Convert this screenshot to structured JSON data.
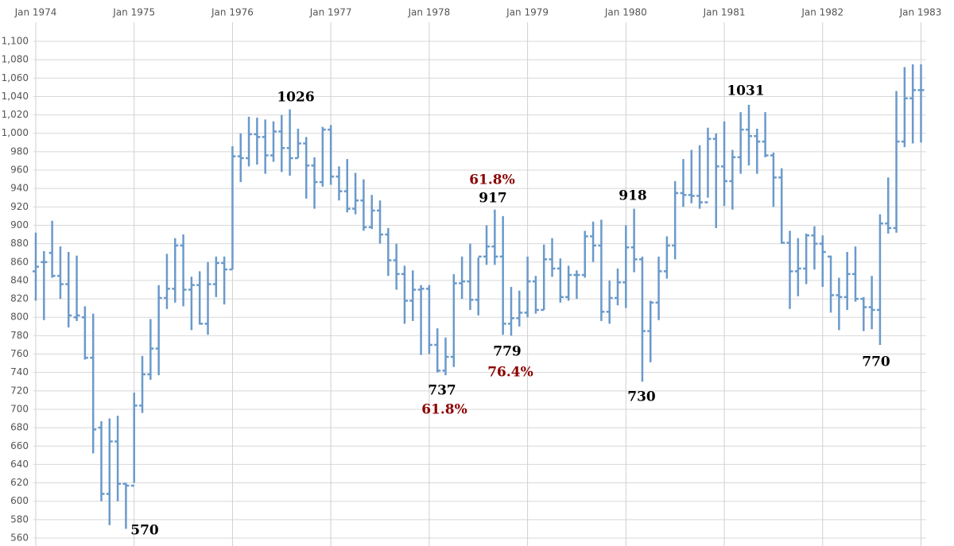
{
  "chart_data": {
    "type": "ohlc",
    "categories": [
      "Jan 1974",
      null,
      null,
      null,
      null,
      null,
      null,
      null,
      null,
      null,
      null,
      null,
      "Jan 1975",
      null,
      null,
      null,
      null,
      null,
      null,
      null,
      null,
      null,
      null,
      null,
      "Jan 1976",
      null,
      null,
      null,
      null,
      null,
      null,
      null,
      null,
      null,
      null,
      null,
      "Jan 1977",
      null,
      null,
      null,
      null,
      null,
      null,
      null,
      null,
      null,
      null,
      null,
      "Jan 1978",
      null,
      null,
      null,
      null,
      null,
      null,
      null,
      null,
      null,
      null,
      null,
      "Jan 1979",
      null,
      null,
      null,
      null,
      null,
      null,
      null,
      null,
      null,
      null,
      null,
      "Jan 1980",
      null,
      null,
      null,
      null,
      null,
      null,
      null,
      null,
      null,
      null,
      null,
      "Jan 1981",
      null,
      null,
      null,
      null,
      null,
      null,
      null,
      null,
      null,
      null,
      null,
      "Jan 1982",
      null,
      null,
      null,
      null,
      null,
      null,
      null,
      null,
      null,
      null,
      null,
      "Jan 1983"
    ],
    "series": [
      {
        "color": "#6a9acb",
        "open": [
          850,
          860,
          870,
          845,
          836,
          800,
          800,
          756,
          680,
          608,
          665,
          619,
          617,
          704,
          738,
          766,
          821,
          831,
          878,
          830,
          835,
          793,
          836,
          859,
          852,
          975,
          973,
          999,
          996,
          976,
          1002,
          984,
          973,
          989,
          965,
          947,
          1004,
          953,
          937,
          918,
          927,
          898,
          916,
          890,
          862,
          847,
          818,
          830,
          831,
          770,
          742,
          757,
          837,
          839,
          819,
          866,
          877,
          866,
          793,
          799,
          805,
          839,
          808,
          863,
          853,
          822,
          846,
          846,
          888,
          878,
          806,
          821,
          838,
          876,
          863,
          785,
          816,
          850,
          878,
          935,
          933,
          932,
          925,
          994,
          964,
          948,
          974,
          1004,
          997,
          991,
          976,
          952,
          881,
          850,
          853,
          889,
          880,
          866,
          824,
          822,
          847,
          820,
          811,
          808,
          902,
          897,
          991,
          1038,
          1047
        ],
        "high": [
          892,
          872,
          905,
          877,
          871,
          867,
          812,
          804,
          687,
          690,
          693,
          620,
          718,
          758,
          798,
          835,
          869,
          886,
          890,
          844,
          850,
          860,
          866,
          866,
          986,
          1000,
          1018,
          1017,
          1015,
          1013,
          1020,
          1026,
          1005,
          996,
          974,
          1007,
          1009,
          964,
          972,
          957,
          950,
          933,
          927,
          897,
          880,
          856,
          851,
          835,
          835,
          788,
          778,
          847,
          866,
          880,
          865,
          900,
          917,
          910,
          833,
          829,
          866,
          845,
          879,
          886,
          864,
          856,
          851,
          894,
          904,
          906,
          840,
          853,
          900,
          918,
          866,
          818,
          866,
          888,
          948,
          972,
          982,
          987,
          1006,
          1000,
          1013,
          982,
          1023,
          1031,
          1005,
          1023,
          979,
          962,
          894,
          886,
          891,
          899,
          889,
          867,
          843,
          871,
          877,
          822,
          845,
          912,
          952,
          1046,
          1072,
          1075,
          1075
        ],
        "low": [
          818,
          797,
          843,
          820,
          789,
          796,
          754,
          652,
          600,
          574,
          600,
          570,
          620,
          696,
          732,
          737,
          809,
          816,
          812,
          786,
          792,
          781,
          822,
          814,
          852,
          947,
          964,
          966,
          956,
          969,
          958,
          954,
          973,
          929,
          918,
          942,
          944,
          927,
          914,
          912,
          894,
          896,
          880,
          845,
          830,
          793,
          796,
          759,
          760,
          740,
          737,
          746,
          820,
          808,
          802,
          857,
          857,
          781,
          780,
          790,
          800,
          804,
          808,
          844,
          816,
          818,
          820,
          843,
          860,
          796,
          793,
          813,
          810,
          849,
          730,
          751,
          797,
          842,
          863,
          920,
          924,
          918,
          930,
          897,
          921,
          917,
          956,
          965,
          956,
          974,
          920,
          880,
          809,
          823,
          836,
          852,
          833,
          805,
          786,
          808,
          817,
          785,
          787,
          770,
          891,
          892,
          985,
          989,
          990
        ],
        "close": [
          855,
          860,
          845,
          836,
          802,
          802,
          756,
          678,
          608,
          665,
          619,
          617,
          704,
          738,
          766,
          821,
          831,
          878,
          830,
          835,
          793,
          836,
          859,
          852,
          975,
          973,
          999,
          996,
          976,
          1002,
          984,
          973,
          989,
          965,
          947,
          1004,
          953,
          937,
          918,
          927,
          898,
          916,
          890,
          862,
          847,
          818,
          830,
          831,
          770,
          742,
          757,
          837,
          839,
          819,
          866,
          877,
          866,
          793,
          799,
          805,
          839,
          808,
          863,
          853,
          822,
          846,
          846,
          888,
          878,
          806,
          821,
          838,
          876,
          863,
          785,
          816,
          850,
          878,
          935,
          933,
          932,
          925,
          994,
          964,
          948,
          974,
          1004,
          997,
          991,
          976,
          952,
          881,
          850,
          853,
          889,
          880,
          871,
          824,
          822,
          847,
          820,
          811,
          808,
          902,
          897,
          991,
          1038,
          1047,
          1047
        ]
      }
    ],
    "ylim": [
      560,
      1100
    ],
    "yticks": [
      560,
      580,
      600,
      620,
      640,
      660,
      680,
      700,
      720,
      740,
      760,
      780,
      800,
      820,
      840,
      860,
      880,
      900,
      920,
      940,
      960,
      980,
      {
        "value": 1000,
        "label": "1,000"
      },
      {
        "value": 1020,
        "label": "1,020"
      },
      {
        "value": 1040,
        "label": "1,040"
      },
      {
        "value": 1060,
        "label": "1,060"
      },
      {
        "value": 1080,
        "label": "1,080"
      },
      {
        "value": 1100,
        "label": "1,100"
      }
    ],
    "grid": true,
    "annotations": [
      {
        "text": "1026",
        "color": "#000000"
      },
      {
        "text": "61.8%",
        "color": "#8b0000"
      },
      {
        "text": "917",
        "color": "#000000"
      },
      {
        "text": "1031",
        "color": "#000000"
      },
      {
        "text": "918",
        "color": "#000000"
      },
      {
        "text": "570",
        "color": "#000000"
      },
      {
        "text": "737",
        "color": "#000000"
      },
      {
        "text": "61.8%",
        "color": "#8b0000"
      },
      {
        "text": "779",
        "color": "#000000"
      },
      {
        "text": "76.4%",
        "color": "#8b0000"
      },
      {
        "text": "730",
        "color": "#000000"
      },
      {
        "text": "770",
        "color": "#000000"
      }
    ]
  }
}
